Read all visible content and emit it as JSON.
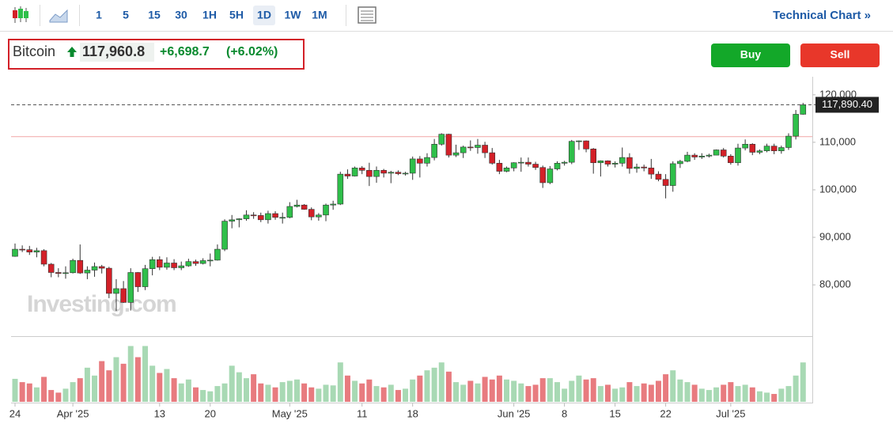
{
  "toolbar": {
    "intervals": [
      "1",
      "5",
      "15",
      "30",
      "1H",
      "5H",
      "1D",
      "1W",
      "1M"
    ],
    "active": "1D",
    "technical_chart": "Technical Chart »"
  },
  "header": {
    "name": "Bitcoin",
    "price": "117,960.8",
    "change": "+6,698.7",
    "change_pct": "(+6.02%)"
  },
  "buttons": {
    "buy": "Buy",
    "sell": "Sell"
  },
  "watermark": "Investing.com",
  "chart_data": {
    "type": "candlestick",
    "up_color": "#2fbf4a",
    "down_color": "#d32028",
    "volume_up_color": "#a8d9b4",
    "volume_down_color": "#e87b7f",
    "ylim": [
      69200,
      123800
    ],
    "yticks": [
      {
        "value": 80000,
        "label": "80,000"
      },
      {
        "value": 90000,
        "label": "90,000"
      },
      {
        "value": 100000,
        "label": "100,000"
      },
      {
        "value": 110000,
        "label": "110,000"
      },
      {
        "value": 120000,
        "label": "120,000"
      }
    ],
    "xticks": [
      {
        "value": 0,
        "label": "24"
      },
      {
        "value": 8,
        "label": "Apr '25"
      },
      {
        "value": 20,
        "label": "13"
      },
      {
        "value": 27,
        "label": "20"
      },
      {
        "value": 38,
        "label": "May '25"
      },
      {
        "value": 48,
        "label": "11"
      },
      {
        "value": 55,
        "label": "18"
      },
      {
        "value": 69,
        "label": "Jun '25"
      },
      {
        "value": 76,
        "label": "8"
      },
      {
        "value": 83,
        "label": "15"
      },
      {
        "value": 90,
        "label": "22"
      },
      {
        "value": 99,
        "label": "Jul '25"
      }
    ],
    "last_price": {
      "value": 117890.4,
      "label": "117,890.40"
    },
    "reference_line": 111200,
    "reference_color": "#f2a5a5",
    "open": [
      86000,
      87500,
      87400,
      86900,
      87200,
      84350,
      82600,
      82400,
      82550,
      85150,
      82500,
      83100,
      83850,
      83500,
      78200,
      79200,
      76300,
      82600,
      79600,
      83400,
      85300,
      83700,
      84600,
      83600,
      84000,
      84900,
      84500,
      85100,
      85200,
      87500,
      93400,
      93700,
      93900,
      94700,
      94600,
      93700,
      95000,
      94200,
      94200,
      96500,
      96800,
      95900,
      94300,
      94700,
      96800,
      97000,
      103300,
      102900,
      104600,
      104100,
      102800,
      104100,
      103500,
      103700,
      103400,
      103500,
      106500,
      105600,
      106800,
      109600,
      111700,
      107300,
      107800,
      109000,
      108900,
      109400,
      107800,
      105600,
      103900,
      104600,
      105700,
      105800,
      105400,
      104700,
      101500,
      104400,
      105600,
      105800,
      110200,
      110300,
      108600,
      105700,
      106100,
      105400,
      105600,
      106800,
      104500,
      104800,
      104600,
      103300,
      102200,
      100900,
      105500,
      106000,
      107300,
      106900,
      107100,
      107300,
      108400,
      107100,
      105700,
      108800,
      109600,
      107900,
      108200,
      109200,
      108200,
      108900,
      111300,
      115900
    ],
    "high": [
      88700,
      88300,
      88200,
      87800,
      87500,
      84600,
      83500,
      83900,
      85500,
      88500,
      83900,
      84700,
      84200,
      83800,
      81200,
      80800,
      83500,
      82700,
      84200,
      85900,
      86000,
      85800,
      85400,
      84900,
      85500,
      85300,
      85600,
      86600,
      88500,
      93800,
      94700,
      94000,
      95700,
      95300,
      95200,
      95600,
      95500,
      95200,
      97400,
      97900,
      97000,
      96300,
      95100,
      97100,
      97700,
      103800,
      104300,
      104900,
      105000,
      105700,
      104900,
      104400,
      104000,
      104100,
      103800,
      107000,
      107100,
      107700,
      110700,
      111900,
      111800,
      109500,
      109300,
      110400,
      110700,
      110100,
      108800,
      106300,
      104900,
      105800,
      106800,
      106800,
      105900,
      105100,
      105000,
      106000,
      106100,
      110500,
      110400,
      110400,
      108800,
      106200,
      106200,
      106000,
      108900,
      107700,
      105500,
      105300,
      106500,
      103900,
      103300,
      106000,
      106300,
      108000,
      107700,
      107700,
      107600,
      108500,
      108800,
      107500,
      109700,
      110600,
      109800,
      108500,
      109700,
      109700,
      109300,
      111900,
      116800,
      118300
    ],
    "low": [
      85900,
      86900,
      86300,
      85800,
      83900,
      81600,
      81600,
      81300,
      82400,
      82300,
      81200,
      81700,
      82400,
      77200,
      74500,
      76200,
      74600,
      78500,
      78900,
      82000,
      83100,
      83200,
      83100,
      83100,
      83800,
      84000,
      84300,
      83900,
      85100,
      87100,
      91900,
      92100,
      93500,
      93900,
      93200,
      92900,
      93700,
      92900,
      94000,
      96300,
      95800,
      93600,
      93500,
      93400,
      95800,
      96800,
      102300,
      102800,
      103300,
      100800,
      101500,
      102600,
      101400,
      103100,
      103000,
      102100,
      102600,
      104900,
      106200,
      109300,
      106800,
      106900,
      106700,
      108200,
      107600,
      106700,
      105300,
      103300,
      103700,
      103900,
      103800,
      104900,
      104200,
      100400,
      101200,
      104100,
      105100,
      105400,
      108400,
      107900,
      103400,
      102800,
      104900,
      104700,
      104900,
      103400,
      103600,
      103900,
      102300,
      101800,
      98200,
      99600,
      104600,
      105800,
      106300,
      106500,
      106800,
      107300,
      106800,
      105300,
      105100,
      108300,
      107300,
      107500,
      107900,
      107500,
      107600,
      108400,
      110600,
      115800
    ],
    "close": [
      87500,
      87400,
      86900,
      87200,
      84350,
      82600,
      82400,
      82550,
      85150,
      82500,
      83100,
      83850,
      83500,
      78200,
      79200,
      76300,
      82600,
      79600,
      83400,
      85300,
      83700,
      84600,
      83600,
      84000,
      84900,
      84500,
      85100,
      85200,
      87500,
      93400,
      93700,
      93900,
      94700,
      94600,
      93700,
      95000,
      94200,
      94200,
      96500,
      96800,
      95900,
      94300,
      94700,
      96800,
      97000,
      103300,
      102900,
      104600,
      104100,
      102800,
      104100,
      103500,
      103700,
      103400,
      103500,
      106500,
      105600,
      106800,
      109600,
      111700,
      107300,
      107800,
      109000,
      108900,
      109400,
      107800,
      105600,
      103900,
      104600,
      105700,
      105800,
      105400,
      104700,
      101500,
      104400,
      105600,
      105800,
      110200,
      110300,
      108600,
      105700,
      106100,
      105400,
      105600,
      106800,
      104500,
      104800,
      104600,
      103300,
      102200,
      100900,
      105500,
      106000,
      107300,
      106900,
      107100,
      107300,
      108400,
      107100,
      105700,
      108800,
      109600,
      107900,
      108200,
      109200,
      108200,
      108900,
      111300,
      115900,
      117890.4
    ],
    "volume_lim": [
      0,
      100
    ],
    "volume": [
      35,
      30,
      28,
      22,
      38,
      18,
      14,
      20,
      30,
      36,
      52,
      40,
      62,
      48,
      68,
      58,
      85,
      68,
      85,
      55,
      44,
      50,
      36,
      28,
      34,
      22,
      18,
      16,
      24,
      28,
      55,
      45,
      36,
      42,
      28,
      26,
      22,
      30,
      32,
      34,
      28,
      22,
      20,
      26,
      25,
      60,
      40,
      32,
      28,
      34,
      24,
      22,
      26,
      18,
      20,
      34,
      40,
      48,
      52,
      60,
      46,
      30,
      26,
      32,
      28,
      38,
      34,
      40,
      34,
      32,
      28,
      24,
      26,
      36,
      36,
      30,
      20,
      32,
      40,
      34,
      36,
      24,
      26,
      20,
      22,
      30,
      24,
      28,
      26,
      32,
      42,
      48,
      34,
      30,
      26,
      20,
      18,
      22,
      26,
      30,
      24,
      26,
      22,
      16,
      14,
      12,
      20,
      24,
      40,
      60
    ]
  }
}
